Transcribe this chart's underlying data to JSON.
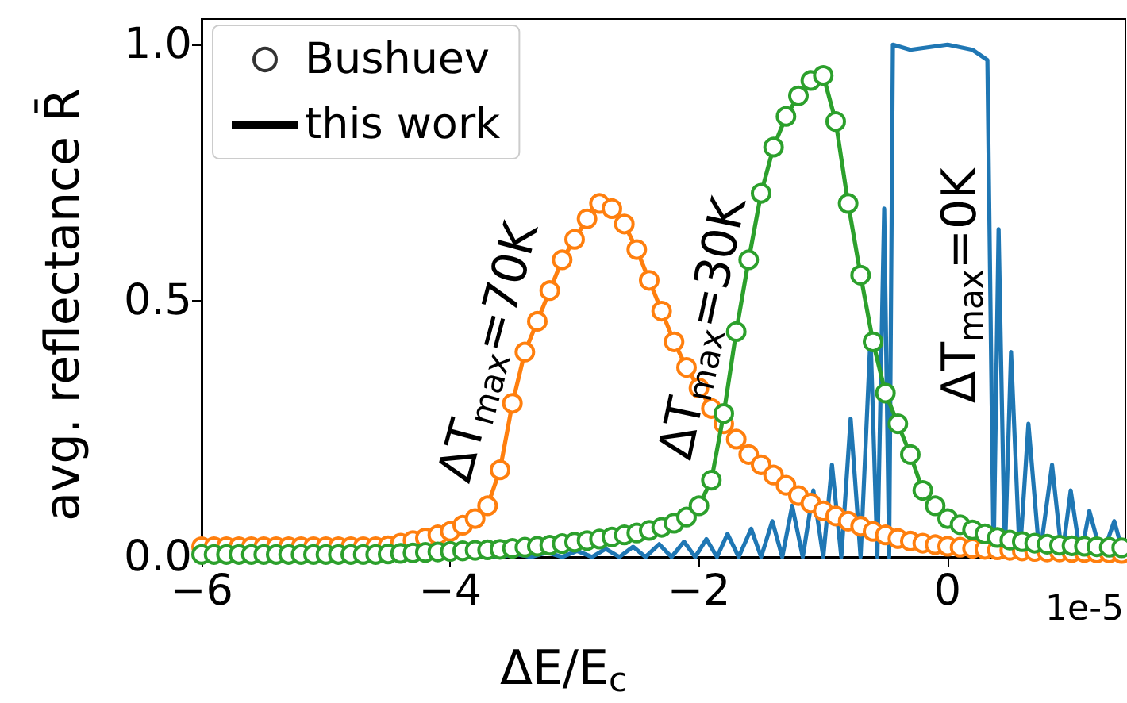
{
  "chart_data": {
    "type": "line",
    "xlabel": "ΔE/E$_{c}$",
    "ylabel": "avg. reflectance R̄",
    "xlim": [
      -6,
      1.43
    ],
    "xticks": [
      -6,
      -4,
      -2,
      0
    ],
    "ylim": [
      0,
      1.05
    ],
    "yticks": [
      {
        "value": 0,
        "label": "0.0"
      },
      {
        "value": 0.5,
        "label": "0.5"
      },
      {
        "value": 1,
        "label": "1.0"
      }
    ],
    "grid": false,
    "legend": "top left",
    "line_style": "solid",
    "annotations": [
      "ΔT$_{max}$=70K",
      "ΔT$_{max}$=30K",
      "ΔT$_{max}$=0K",
      "1e-5"
    ],
    "series": [
      {
        "name": "Bushuev",
        "type": "scatter",
        "marker": "circle",
        "color": "#000000"
      },
      {
        "name": "this work",
        "marker": "none",
        "color": "#000000"
      },
      {
        "marker": "none",
        "color": "#1f77b4",
        "x": [
          -3.75,
          -3.6,
          -3.48,
          -3.35,
          -3.22,
          -3.1,
          -2.98,
          -2.86,
          -2.75,
          -2.64,
          -2.53,
          -2.43,
          -2.32,
          -2.22,
          -2.12,
          -2.03,
          -1.94,
          -1.855,
          -1.77,
          -1.68,
          -1.58,
          -1.5,
          -1.41,
          -1.33,
          -1.25,
          -1.165,
          -1.08,
          -1.0,
          -0.93,
          -0.855,
          -0.78,
          -0.7,
          -0.62,
          -0.565,
          -0.51,
          -0.47,
          -0.44,
          -0.3,
          0,
          0.2,
          0.32,
          0.37,
          0.41,
          0.46,
          0.51,
          0.58,
          0.65,
          0.74,
          0.84,
          0.92,
          0.99,
          1.07,
          1.14,
          1.24,
          1.34,
          1.42
        ],
        "values": [
          0.004,
          0,
          0.006,
          0,
          0.009,
          0,
          0.012,
          0,
          0.016,
          0,
          0.02,
          0,
          0.025,
          0,
          0.03,
          0,
          0.035,
          0,
          0.045,
          0,
          0.055,
          0,
          0.07,
          0,
          0.1,
          0,
          0.13,
          0,
          0.18,
          0,
          0.27,
          0,
          0.43,
          0,
          0.68,
          0,
          1.0,
          0.99,
          1.0,
          0.99,
          0.97,
          0,
          0.64,
          0,
          0.4,
          0,
          0.26,
          0,
          0.18,
          0,
          0.13,
          0,
          0.09,
          0,
          0.07,
          0
        ]
      },
      {
        "marker": "circle",
        "color": "#ff7f0e",
        "x": [
          -6.0,
          -5.9,
          -5.8,
          -5.7,
          -5.6,
          -5.5,
          -5.4,
          -5.3,
          -5.2,
          -5.1,
          -5.0,
          -4.9,
          -4.8,
          -4.7,
          -4.6,
          -4.5,
          -4.4,
          -4.3,
          -4.2,
          -4.1,
          -4.0,
          -3.9,
          -3.8,
          -3.7,
          -3.6,
          -3.5,
          -3.4,
          -3.3,
          -3.2,
          -3.1,
          -3.0,
          -2.9,
          -2.8,
          -2.7,
          -2.6,
          -2.5,
          -2.4,
          -2.3,
          -2.2,
          -2.1,
          -2.0,
          -1.9,
          -1.8,
          -1.7,
          -1.6,
          -1.5,
          -1.4,
          -1.3,
          -1.2,
          -1.1,
          -1.0,
          -0.9,
          -0.8,
          -0.7,
          -0.6,
          -0.5,
          -0.4,
          -0.3,
          -0.2,
          -0.1,
          0.0,
          0.1,
          0.2,
          0.3,
          0.4,
          0.5,
          0.6,
          0.7,
          0.8,
          0.9,
          1.0,
          1.1,
          1.2,
          1.3,
          1.4
        ],
        "values": [
          0.02,
          0.02,
          0.02,
          0.02,
          0.02,
          0.02,
          0.02,
          0.02,
          0.02,
          0.02,
          0.02,
          0.02,
          0.02,
          0.02,
          0.02,
          0.022,
          0.027,
          0.032,
          0.037,
          0.043,
          0.05,
          0.062,
          0.075,
          0.1,
          0.17,
          0.3,
          0.4,
          0.46,
          0.52,
          0.58,
          0.62,
          0.66,
          0.69,
          0.68,
          0.65,
          0.6,
          0.54,
          0.48,
          0.42,
          0.37,
          0.33,
          0.29,
          0.26,
          0.23,
          0.2,
          0.18,
          0.16,
          0.14,
          0.12,
          0.105,
          0.09,
          0.08,
          0.07,
          0.06,
          0.05,
          0.043,
          0.036,
          0.031,
          0.027,
          0.024,
          0.021,
          0.019,
          0.017,
          0.015,
          0.014,
          0.013,
          0.012,
          0.011,
          0.01,
          0.01,
          0.009,
          0.009,
          0.008,
          0.008,
          0.007
        ]
      },
      {
        "marker": "circle",
        "color": "#2ca02c",
        "x": [
          -6.0,
          -5.9,
          -5.8,
          -5.7,
          -5.6,
          -5.5,
          -5.4,
          -5.3,
          -5.2,
          -5.1,
          -5.0,
          -4.9,
          -4.8,
          -4.7,
          -4.6,
          -4.5,
          -4.4,
          -4.3,
          -4.2,
          -4.1,
          -4.0,
          -3.9,
          -3.8,
          -3.7,
          -3.6,
          -3.5,
          -3.4,
          -3.3,
          -3.2,
          -3.1,
          -3.0,
          -2.9,
          -2.8,
          -2.7,
          -2.6,
          -2.5,
          -2.4,
          -2.3,
          -2.2,
          -2.1,
          -2.0,
          -1.9,
          -1.8,
          -1.7,
          -1.6,
          -1.5,
          -1.4,
          -1.3,
          -1.2,
          -1.1,
          -1.0,
          -0.9,
          -0.8,
          -0.7,
          -0.6,
          -0.5,
          -0.4,
          -0.3,
          -0.2,
          -0.1,
          0.0,
          0.1,
          0.2,
          0.3,
          0.4,
          0.5,
          0.6,
          0.7,
          0.8,
          0.9,
          1.0,
          1.1,
          1.2,
          1.3,
          1.4
        ],
        "values": [
          0.005,
          0.005,
          0.005,
          0.005,
          0.005,
          0.005,
          0.005,
          0.005,
          0.005,
          0.005,
          0.005,
          0.005,
          0.005,
          0.005,
          0.005,
          0.006,
          0.007,
          0.008,
          0.009,
          0.01,
          0.011,
          0.012,
          0.013,
          0.014,
          0.015,
          0.017,
          0.019,
          0.021,
          0.023,
          0.026,
          0.029,
          0.032,
          0.035,
          0.039,
          0.043,
          0.047,
          0.052,
          0.058,
          0.066,
          0.078,
          0.1,
          0.15,
          0.28,
          0.44,
          0.58,
          0.71,
          0.8,
          0.86,
          0.9,
          0.93,
          0.94,
          0.85,
          0.69,
          0.55,
          0.42,
          0.32,
          0.26,
          0.2,
          0.13,
          0.1,
          0.075,
          0.063,
          0.053,
          0.045,
          0.038,
          0.033,
          0.03,
          0.027,
          0.025,
          0.023,
          0.022,
          0.021,
          0.02,
          0.019,
          0.018
        ]
      }
    ]
  }
}
